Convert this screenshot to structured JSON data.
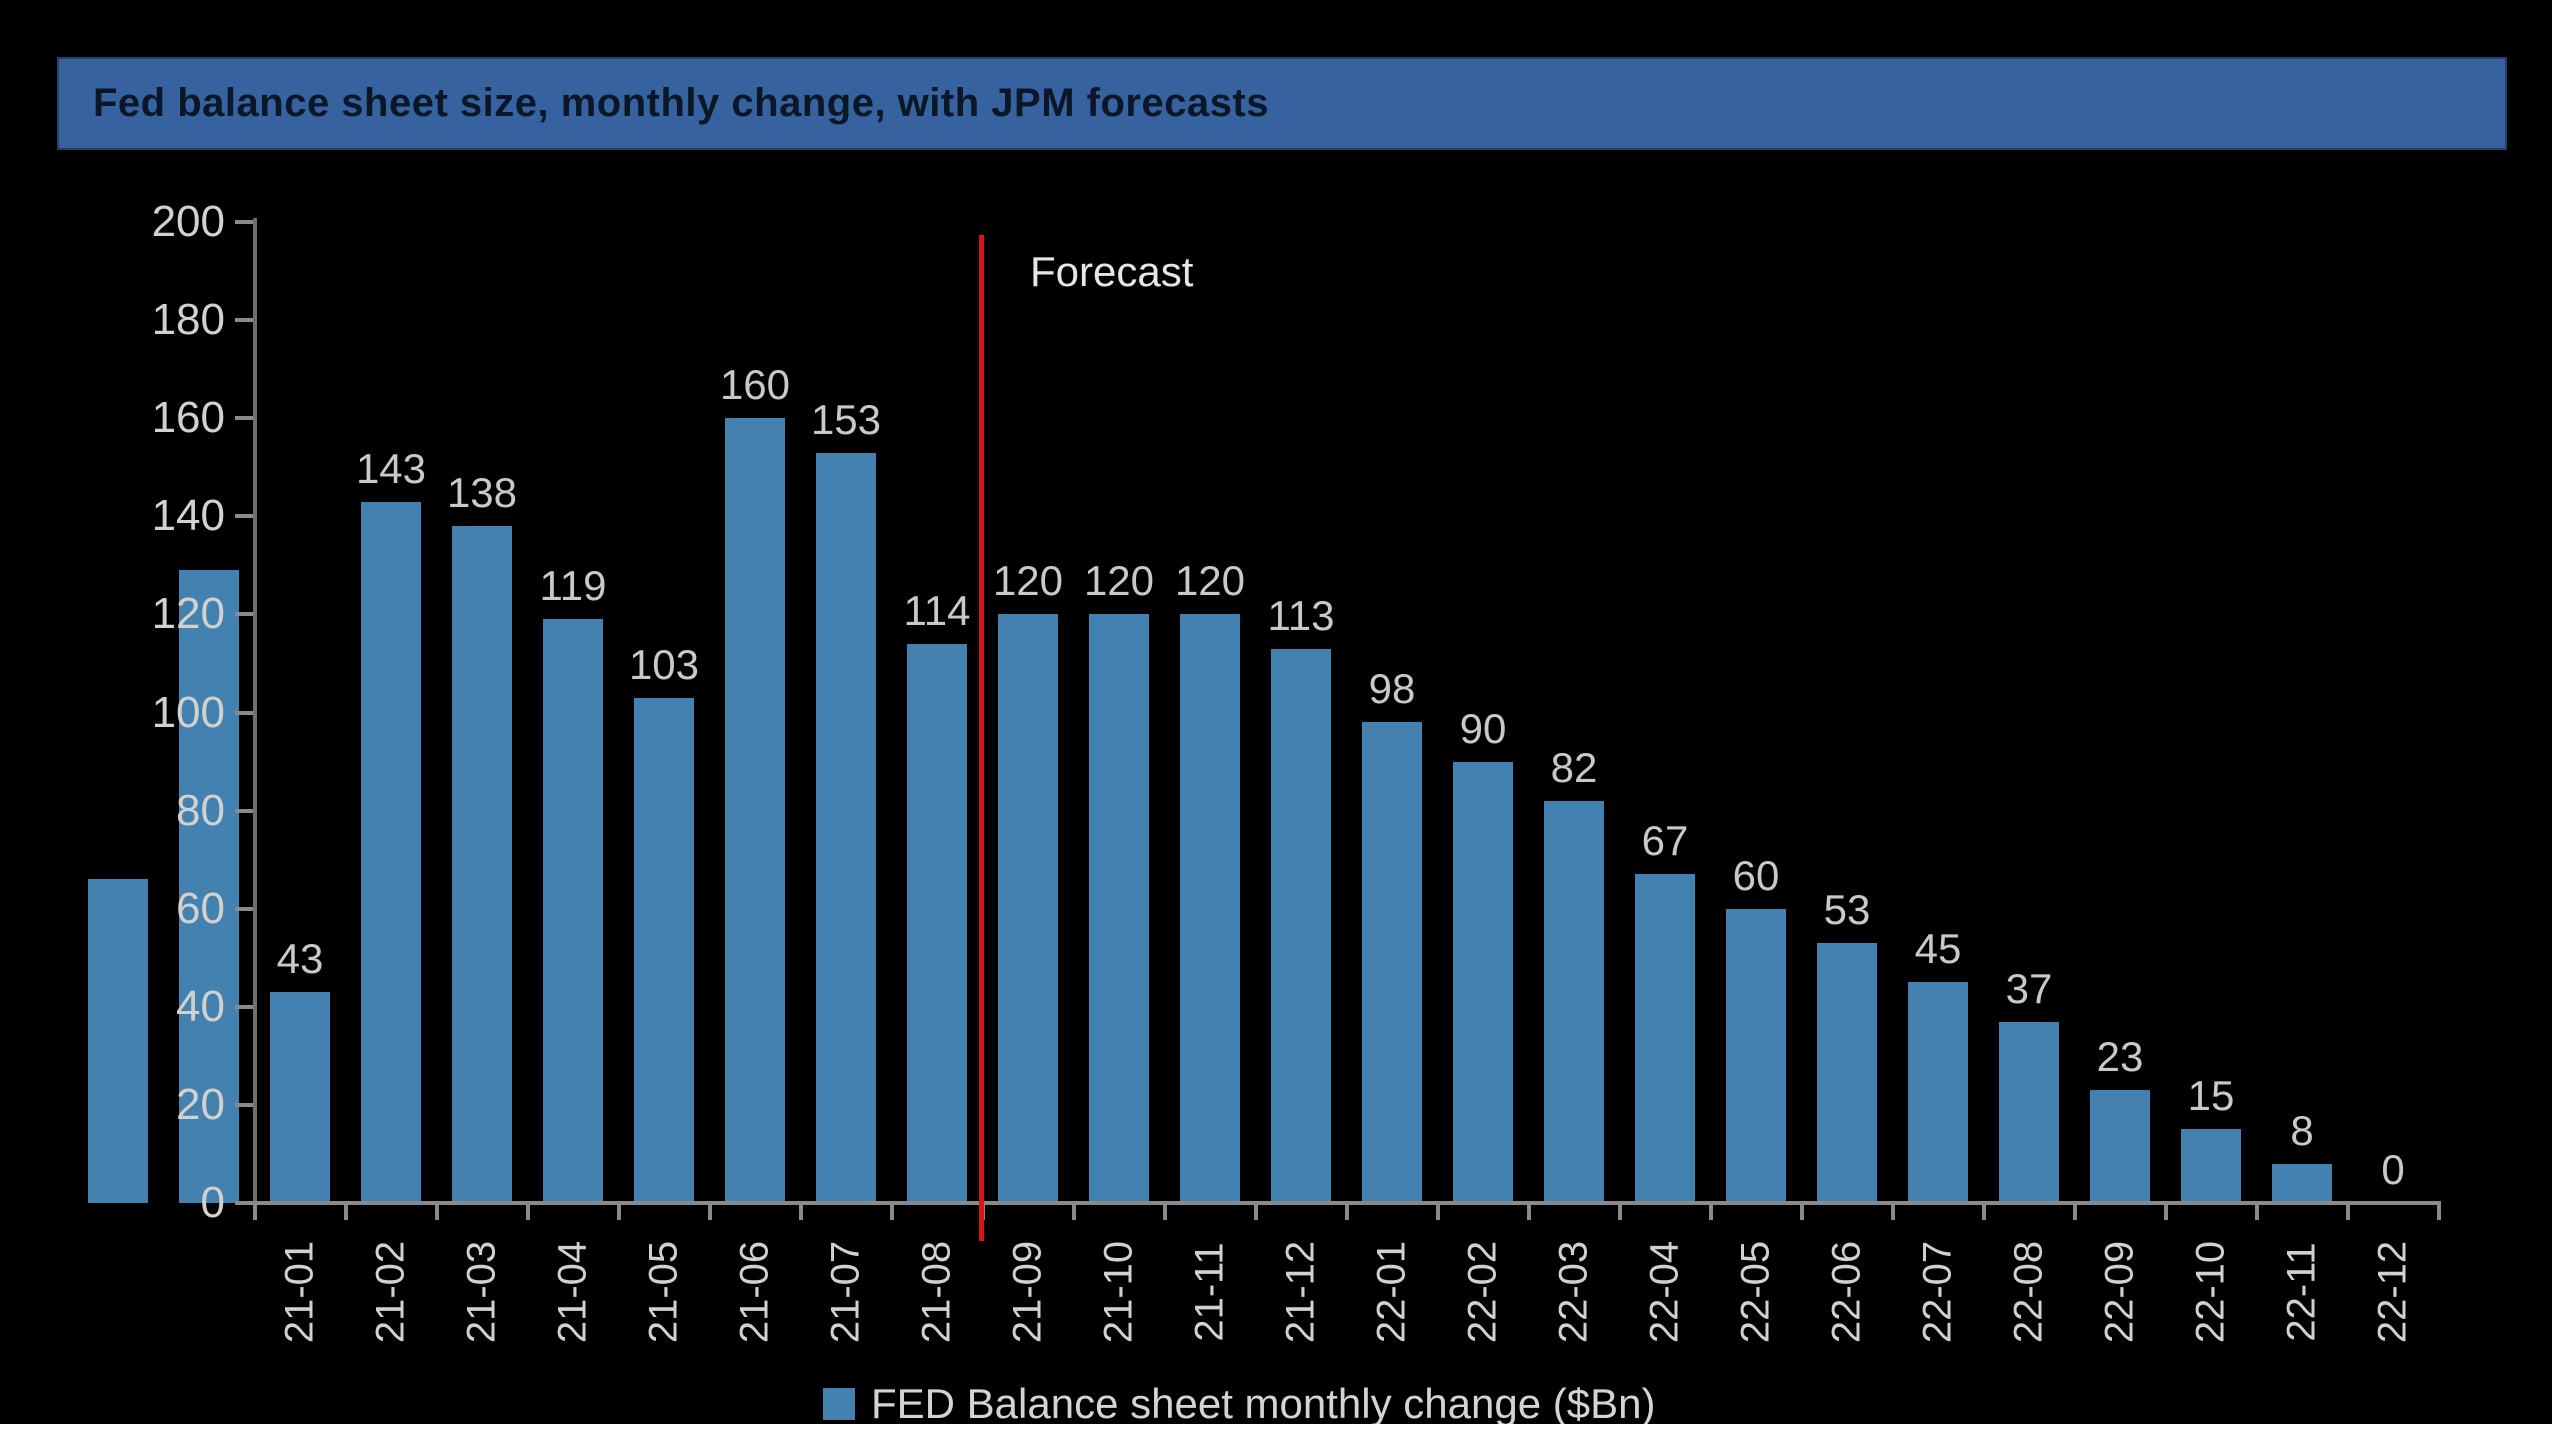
{
  "page": {
    "background": "#000000",
    "bottom_strip_color": "#ffffff"
  },
  "title_band": {
    "label": "Fed balance sheet size, monthly change, with JPM forecasts",
    "bg": "#36639f",
    "text_color": "#0b1626"
  },
  "style": {
    "bar_color": "#4381b1",
    "axis_color": "#8a8a8a",
    "y_axis_color": "#6f6f6f",
    "tick_label_color": "#d3d1cd",
    "value_label_color": "#cbc9c5",
    "x_label_color": "#d3d1cd",
    "forecast_line_color": "#d91616",
    "forecast_text_color": "#e8e6e2",
    "legend_text_color": "#d6d4d0"
  },
  "chart_data": {
    "type": "bar",
    "title": "Fed balance sheet size, monthly change, with JPM forecasts",
    "xlabel": "",
    "ylabel": "",
    "ylim": [
      0,
      200
    ],
    "ytick_step": 20,
    "yticks": [
      "0",
      "20",
      "40",
      "60",
      "80",
      "100",
      "120",
      "140",
      "160",
      "180",
      "200"
    ],
    "grid": false,
    "legend_position": "bottom-center",
    "legend": [
      {
        "label": "FED Balance sheet monthly change ($Bn)",
        "color": "#4381b1"
      }
    ],
    "forecast_annotation": {
      "label": "Forecast",
      "line_color": "#d91616",
      "after_category": "21-08"
    },
    "bars": [
      {
        "category": "",
        "value": 66,
        "value_label": null
      },
      {
        "category": "",
        "value": 129,
        "value_label": null
      },
      {
        "category": "21-01",
        "value": 43,
        "value_label": "43"
      },
      {
        "category": "21-02",
        "value": 143,
        "value_label": "143"
      },
      {
        "category": "21-03",
        "value": 138,
        "value_label": "138"
      },
      {
        "category": "21-04",
        "value": 119,
        "value_label": "119"
      },
      {
        "category": "21-05",
        "value": 103,
        "value_label": "103"
      },
      {
        "category": "21-06",
        "value": 160,
        "value_label": "160"
      },
      {
        "category": "21-07",
        "value": 153,
        "value_label": "153"
      },
      {
        "category": "21-08",
        "value": 114,
        "value_label": "114"
      },
      {
        "category": "21-09",
        "value": 120,
        "value_label": "120"
      },
      {
        "category": "21-10",
        "value": 120,
        "value_label": "120"
      },
      {
        "category": "21-11",
        "value": 120,
        "value_label": "120"
      },
      {
        "category": "21-12",
        "value": 113,
        "value_label": "113"
      },
      {
        "category": "22-01",
        "value": 98,
        "value_label": "98"
      },
      {
        "category": "22-02",
        "value": 90,
        "value_label": "90"
      },
      {
        "category": "22-03",
        "value": 82,
        "value_label": "82"
      },
      {
        "category": "22-04",
        "value": 67,
        "value_label": "67"
      },
      {
        "category": "22-05",
        "value": 60,
        "value_label": "60"
      },
      {
        "category": "22-06",
        "value": 53,
        "value_label": "53"
      },
      {
        "category": "22-07",
        "value": 45,
        "value_label": "45"
      },
      {
        "category": "22-08",
        "value": 37,
        "value_label": "37"
      },
      {
        "category": "22-09",
        "value": 23,
        "value_label": "23"
      },
      {
        "category": "22-10",
        "value": 15,
        "value_label": "15"
      },
      {
        "category": "22-11",
        "value": 8,
        "value_label": "8"
      },
      {
        "category": "22-12",
        "value": 0,
        "value_label": "0"
      }
    ]
  }
}
